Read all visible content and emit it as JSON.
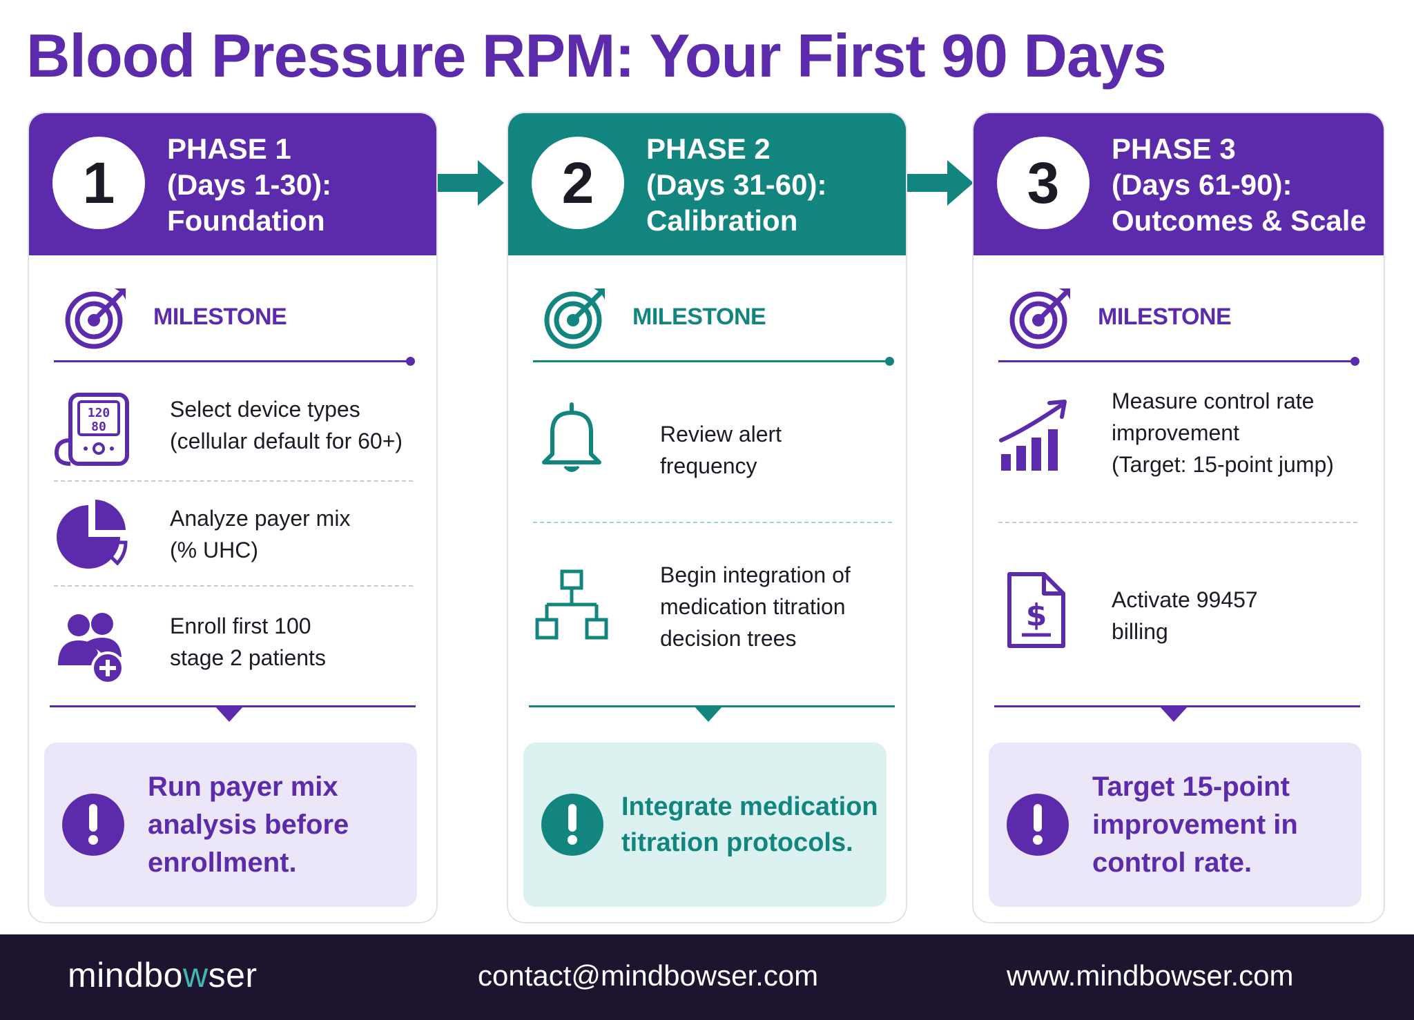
{
  "title": "Blood Pressure RPM: Your First 90 Days",
  "colors": {
    "purple": "#5b2bab",
    "teal": "#13857f",
    "purple_light": "#ece7f8",
    "teal_light": "#dcf2f1",
    "dark": "#1d1530"
  },
  "phases": [
    {
      "number": "1",
      "title_line1": "PHASE 1",
      "title_line2": "(Days 1-30):",
      "title_line3": "Foundation",
      "milestone_label": "MILESTONE",
      "items": [
        {
          "icon": "blood-pressure-monitor-icon",
          "line1": "Select device types",
          "line2": "(cellular default for 60+)",
          "line3": "",
          "bp_top": "120",
          "bp_bottom": "80"
        },
        {
          "icon": "pie-chart-icon",
          "line1": "Analyze payer mix",
          "line2": "(% UHC)",
          "line3": ""
        },
        {
          "icon": "add-users-icon",
          "line1": "Enroll first 100",
          "line2": "stage 2 patients",
          "line3": ""
        }
      ],
      "callout_line1": "Run payer mix",
      "callout_line2": "analysis before",
      "callout_line3": "enrollment."
    },
    {
      "number": "2",
      "title_line1": "PHASE 2",
      "title_line2": "(Days 31-60):",
      "title_line3": "Calibration",
      "milestone_label": "MILESTONE",
      "items": [
        {
          "icon": "bell-icon",
          "line1": "Review alert",
          "line2": "frequency",
          "line3": ""
        },
        {
          "icon": "decision-tree-icon",
          "line1": "Begin integration of",
          "line2": "medication titration",
          "line3": "decision trees"
        }
      ],
      "callout_line1": "Integrate medication",
      "callout_line2": "titration protocols.",
      "callout_line3": ""
    },
    {
      "number": "3",
      "title_line1": "PHASE 3",
      "title_line2": "(Days 61-90):",
      "title_line3": "Outcomes & Scale",
      "milestone_label": "MILESTONE",
      "items": [
        {
          "icon": "growth-chart-icon",
          "line1": "Measure control rate",
          "line2": "improvement",
          "line3": "(Target: 15-point jump)"
        },
        {
          "icon": "billing-document-icon",
          "line1": "Activate 99457",
          "line2": "billing",
          "line3": ""
        }
      ],
      "callout_line1": "Target 15-point",
      "callout_line2": "improvement in",
      "callout_line3": "control rate."
    }
  ],
  "footer": {
    "brand_part1": "mindbo",
    "brand_accent": "w",
    "brand_part2": "ser",
    "email": "contact@mindbowser.com",
    "website": "www.mindbowser.com"
  }
}
